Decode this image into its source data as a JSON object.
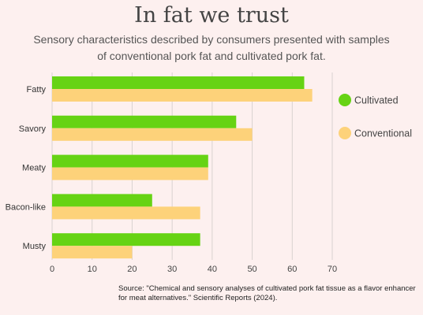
{
  "title": "In fat we trust",
  "subtitle": "Sensory characteristics described by consumers presented with samples of conventional pork fat and cultivated pork fat.",
  "source": "Source: \"Chemical and sensory analyses of cultivated pork fat tissue as a flavor enhancer for meat alternatives.\" Scientific Reports (2024).",
  "chart_data": {
    "type": "bar",
    "orientation": "horizontal",
    "title": "In fat we trust",
    "subtitle": "Sensory characteristics described by consumers presented with samples of conventional pork fat and cultivated pork fat.",
    "categories": [
      "Fatty",
      "Savory",
      "Meaty",
      "Bacon-like",
      "Musty"
    ],
    "series": [
      {
        "name": "Cultivated",
        "values": [
          63,
          46,
          39,
          25,
          37
        ],
        "color": "#66d314"
      },
      {
        "name": "Conventional",
        "values": [
          65,
          50,
          39,
          37,
          20
        ],
        "color": "#fdd27a"
      }
    ],
    "xlim": [
      0,
      70
    ],
    "xticks": [
      0,
      10,
      20,
      30,
      40,
      50,
      60,
      70
    ],
    "grid": "vertical",
    "legend_position": "right"
  },
  "colors": {
    "background": "#fdf0ef",
    "cultivated": "#66d314",
    "conventional": "#fdd27a",
    "grid": "#d9d2d0"
  }
}
